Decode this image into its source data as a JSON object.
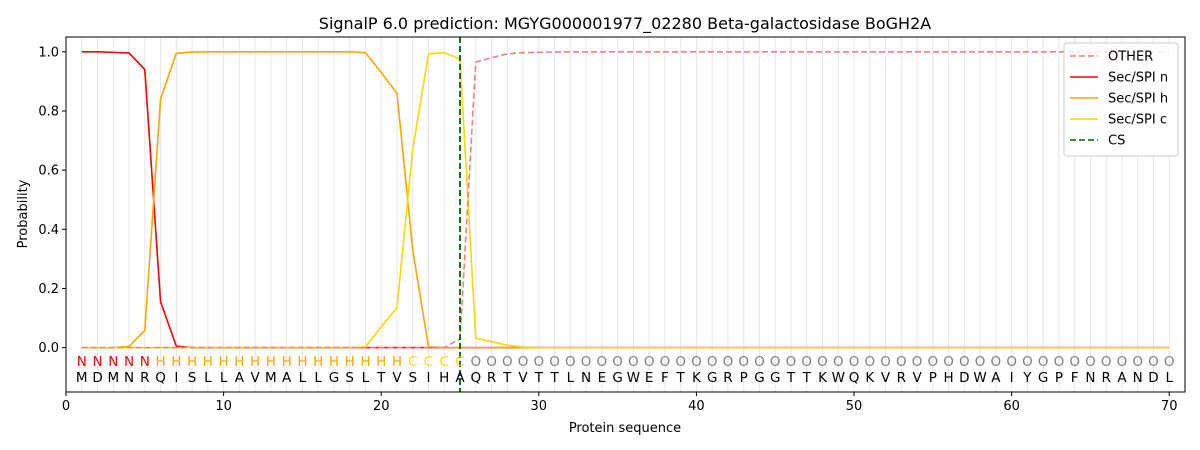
{
  "chart_data": {
    "type": "line",
    "title": "SignalP 6.0 prediction: MGYG000001977_02280 Beta-galactosidase BoGH2A",
    "xlabel": "Protein sequence",
    "ylabel": "Probability",
    "xlim": [
      0,
      71
    ],
    "ylim": [
      -0.15,
      1.05
    ],
    "xticks": [
      0,
      10,
      20,
      30,
      40,
      50,
      60,
      70
    ],
    "yticks": [
      0.0,
      0.2,
      0.4,
      0.6,
      0.8,
      1.0
    ],
    "grid": "vertical lines at every residue",
    "legend_position": "top-right",
    "sequence": [
      "M",
      "D",
      "M",
      "N",
      "R",
      "Q",
      "I",
      "S",
      "L",
      "L",
      "A",
      "V",
      "M",
      "A",
      "L",
      "L",
      "G",
      "S",
      "L",
      "T",
      "V",
      "S",
      "I",
      "H",
      "A",
      "Q",
      "R",
      "T",
      "V",
      "T",
      "T",
      "L",
      "N",
      "E",
      "G",
      "W",
      "E",
      "F",
      "T",
      "K",
      "G",
      "R",
      "P",
      "G",
      "G",
      "T",
      "T",
      "K",
      "W",
      "Q",
      "K",
      "V",
      "R",
      "V",
      "P",
      "H",
      "D",
      "W",
      "A",
      "I",
      "Y",
      "G",
      "P",
      "F",
      "N",
      "R",
      "A",
      "N",
      "D",
      "L"
    ],
    "region_labels": [
      "N",
      "N",
      "N",
      "N",
      "N",
      "H",
      "H",
      "H",
      "H",
      "H",
      "H",
      "H",
      "H",
      "H",
      "H",
      "H",
      "H",
      "H",
      "H",
      "H",
      "H",
      "C",
      "C",
      "C",
      "C",
      "O",
      "O",
      "O",
      "O",
      "O",
      "O",
      "O",
      "O",
      "O",
      "O",
      "O",
      "O",
      "O",
      "O",
      "O",
      "O",
      "O",
      "O",
      "O",
      "O",
      "O",
      "O",
      "O",
      "O",
      "O",
      "O",
      "O",
      "O",
      "O",
      "O",
      "O",
      "O",
      "O",
      "O",
      "O",
      "O",
      "O",
      "O",
      "O",
      "O",
      "O",
      "O",
      "O",
      "O",
      "O"
    ],
    "region_colors": {
      "N": "#ff0000",
      "H": "#ffa500",
      "C": "#ffd700",
      "O": "#808080"
    },
    "cleavage_site": 25,
    "series": [
      {
        "name": "OTHER",
        "color": "#f08080",
        "style": "dashed",
        "values": [
          0,
          0,
          0,
          0,
          0,
          0,
          0,
          0,
          0,
          0,
          0,
          0,
          0,
          0,
          0,
          0,
          0,
          0,
          0,
          0,
          0,
          0,
          0,
          0,
          0.03,
          0.965,
          0.98,
          0.993,
          0.997,
          0.998,
          0.999,
          1,
          1,
          1,
          1,
          1,
          1,
          1,
          1,
          1,
          1,
          1,
          1,
          1,
          1,
          1,
          1,
          1,
          1,
          1,
          1,
          1,
          1,
          1,
          1,
          1,
          1,
          1,
          1,
          1,
          1,
          1,
          1,
          1,
          1,
          1,
          1,
          1,
          1,
          1
        ]
      },
      {
        "name": "Sec/SPI n",
        "color": "#ff0000",
        "style": "solid",
        "values": [
          1.0,
          1.0,
          0.998,
          0.996,
          0.94,
          0.155,
          0.005,
          0,
          0,
          0,
          0,
          0,
          0,
          0,
          0,
          0,
          0,
          0,
          0,
          0,
          0,
          0,
          0,
          0,
          0,
          0,
          0,
          0,
          0,
          0,
          0,
          0,
          0,
          0,
          0,
          0,
          0,
          0,
          0,
          0,
          0,
          0,
          0,
          0,
          0,
          0,
          0,
          0,
          0,
          0,
          0,
          0,
          0,
          0,
          0,
          0,
          0,
          0,
          0,
          0,
          0,
          0,
          0,
          0,
          0,
          0,
          0,
          0,
          0,
          0
        ]
      },
      {
        "name": "Sec/SPI h",
        "color": "#ffa500",
        "style": "solid",
        "values": [
          0,
          0,
          0,
          0.004,
          0.058,
          0.84,
          0.995,
          0.999,
          1,
          1,
          1,
          1,
          1,
          1,
          1,
          1,
          1,
          1,
          0.997,
          0.93,
          0.86,
          0.33,
          0.003,
          0,
          0,
          0,
          0,
          0,
          0,
          0,
          0,
          0,
          0,
          0,
          0,
          0,
          0,
          0,
          0,
          0,
          0,
          0,
          0,
          0,
          0,
          0,
          0,
          0,
          0,
          0,
          0,
          0,
          0,
          0,
          0,
          0,
          0,
          0,
          0,
          0,
          0,
          0,
          0,
          0,
          0,
          0,
          0,
          0,
          0,
          0
        ]
      },
      {
        "name": "Sec/SPI c",
        "color": "#ffd700",
        "style": "solid",
        "values": [
          0,
          0,
          0,
          0,
          0,
          0,
          0,
          0,
          0,
          0,
          0,
          0,
          0,
          0,
          0,
          0,
          0,
          0,
          0.003,
          0.07,
          0.135,
          0.67,
          0.993,
          0.997,
          0.975,
          0.032,
          0.02,
          0.008,
          0.002,
          0,
          0,
          0,
          0,
          0,
          0,
          0,
          0,
          0,
          0,
          0,
          0,
          0,
          0,
          0,
          0,
          0,
          0,
          0,
          0,
          0,
          0,
          0,
          0,
          0,
          0,
          0,
          0,
          0,
          0,
          0,
          0,
          0,
          0,
          0,
          0,
          0,
          0,
          0,
          0,
          0
        ]
      }
    ],
    "legend": [
      {
        "label": "OTHER",
        "color": "#f08080",
        "style": "dashed"
      },
      {
        "label": "Sec/SPI n",
        "color": "#ff0000",
        "style": "solid"
      },
      {
        "label": "Sec/SPI h",
        "color": "#ffa500",
        "style": "solid"
      },
      {
        "label": "Sec/SPI c",
        "color": "#ffd700",
        "style": "solid"
      },
      {
        "label": "CS",
        "color": "#006400",
        "style": "dashed"
      }
    ]
  }
}
